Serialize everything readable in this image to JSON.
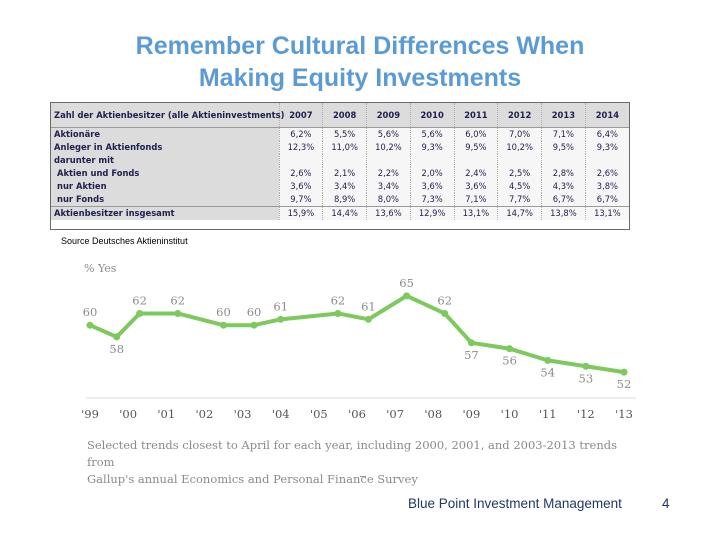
{
  "slide": {
    "title_line1": "Remember Cultural Differences When",
    "title_line2": "Making Equity Investments",
    "source": "Source Deutsches Aktieninstitut",
    "footer": "Blue Point Investment Management",
    "page_number": "4"
  },
  "table": {
    "header": [
      "Zahl der Aktienbesitzer (alle Aktieninvestments)",
      "2007",
      "2008",
      "2009",
      "2010",
      "2011",
      "2012",
      "2013",
      "2014"
    ],
    "rows": [
      {
        "label": "Aktionäre",
        "values": [
          "6,2%",
          "5,5%",
          "5,6%",
          "5,6%",
          "6,0%",
          "7,0%",
          "7,1%",
          "6,4%"
        ]
      },
      {
        "label": "Anleger in Aktienfonds",
        "values": [
          "12,3%",
          "11,0%",
          "10,2%",
          "9,3%",
          "9,5%",
          "10,2%",
          "9,5%",
          "9,3%"
        ]
      },
      {
        "label": "darunter mit",
        "values": [
          "",
          "",
          "",
          "",
          "",
          "",
          "",
          ""
        ]
      },
      {
        "label": "Aktien und Fonds",
        "values": [
          "2,6%",
          "2,1%",
          "2,2%",
          "2,0%",
          "2,4%",
          "2,5%",
          "2,8%",
          "2,6%"
        ]
      },
      {
        "label": "nur Aktien",
        "values": [
          "3,6%",
          "3,4%",
          "3,4%",
          "3,6%",
          "3,6%",
          "4,5%",
          "4,3%",
          "3,8%"
        ]
      },
      {
        "label": "nur Fonds",
        "values": [
          "9,7%",
          "8,9%",
          "8,0%",
          "7,3%",
          "7,1%",
          "7,7%",
          "6,7%",
          "6,7%"
        ]
      },
      {
        "label": "Aktienbesitzer insgesamt",
        "values": [
          "15,9%",
          "14,4%",
          "13,6%",
          "12,9%",
          "13,1%",
          "14,7%",
          "13,8%",
          "13,1%"
        ]
      }
    ]
  },
  "chart_data": {
    "type": "line",
    "ylabel": "% Yes",
    "categories": [
      "'99",
      "'00",
      "'01",
      "'02",
      "'03",
      "'04",
      "'05",
      "'06",
      "'07",
      "'08",
      "'09",
      "'10",
      "'11",
      "'12",
      "'13"
    ],
    "series": [
      {
        "points": [
          {
            "x": 1999.0,
            "y": 60
          },
          {
            "x": 1999.7,
            "y": 58
          },
          {
            "x": 2000.3,
            "y": 62
          },
          {
            "x": 2001.3,
            "y": 62
          },
          {
            "x": 2002.5,
            "y": 60
          },
          {
            "x": 2003.3,
            "y": 60
          },
          {
            "x": 2004.0,
            "y": 61
          },
          {
            "x": 2005.5,
            "y": 62
          },
          {
            "x": 2006.3,
            "y": 61
          },
          {
            "x": 2007.3,
            "y": 65
          },
          {
            "x": 2008.3,
            "y": 62
          },
          {
            "x": 2009.0,
            "y": 57
          },
          {
            "x": 2010.0,
            "y": 56
          },
          {
            "x": 2011.0,
            "y": 54
          },
          {
            "x": 2012.0,
            "y": 53
          },
          {
            "x": 2013.0,
            "y": 52
          }
        ]
      }
    ],
    "line_color": "#7dc95e",
    "label_color": "#8c8c8c",
    "caption_line1": "Selected trends closest to April for each year, including 2000, 2001, and 2003-2013 trends from",
    "caption_line2": "Gallup's annual Economics and Personal Finance Survey"
  }
}
